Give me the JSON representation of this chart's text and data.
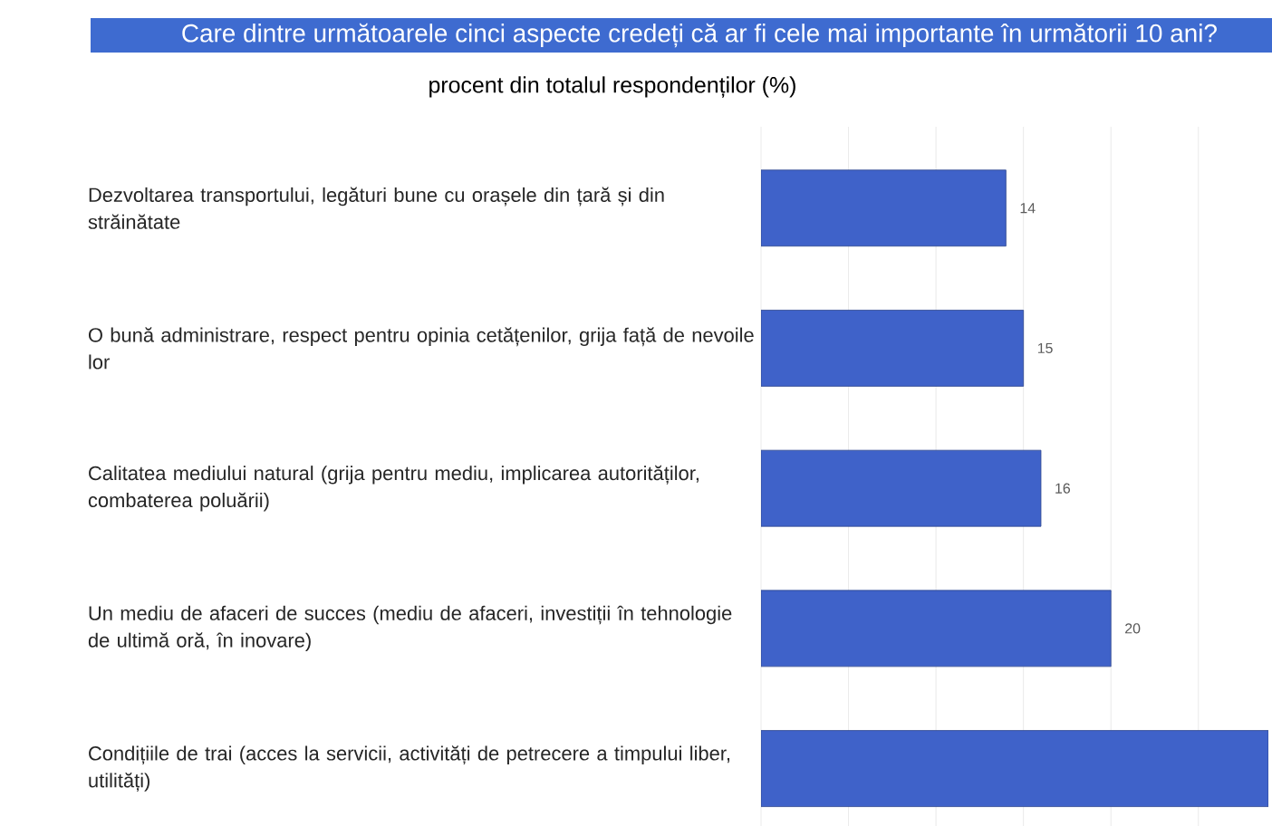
{
  "chart_data": {
    "type": "bar",
    "orientation": "horizontal",
    "title": "Care dintre următoarele cinci aspecte credeți că ar fi cele mai importante în următorii 10 ani?",
    "subtitle": "procent din totalul respondenților (%)",
    "categories": [
      "Dezvoltarea transportului, legături bune cu orașele din țară și din străinătate",
      "O bună administrare, respect pentru opinia cetățenilor, grija față de nevoile lor",
      "Calitatea mediului natural (grija pentru mediu, implicarea autorităților, combaterea poluării)",
      "Un mediu de afaceri de succes (mediu de afaceri, investiții în tehnologie de ultimă oră, în inovare)",
      "Condițiile de trai (acces la servicii, activități de petrecere a timpului liber, utilități)"
    ],
    "values": [
      14,
      15,
      16,
      20,
      29
    ],
    "value_labels": [
      "14",
      "15",
      "16",
      "20",
      null
    ],
    "color": "#3f62c9",
    "xlim": [
      0,
      29
    ],
    "xticks": [
      {
        "value": 0,
        "label": null
      },
      {
        "value": 5,
        "label": null
      },
      {
        "value": 10,
        "label": null
      },
      {
        "value": 15,
        "label": null
      },
      {
        "value": 20,
        "label": null
      },
      {
        "value": 25,
        "label": null
      }
    ],
    "grid": "x",
    "tick_labels": "y"
  }
}
